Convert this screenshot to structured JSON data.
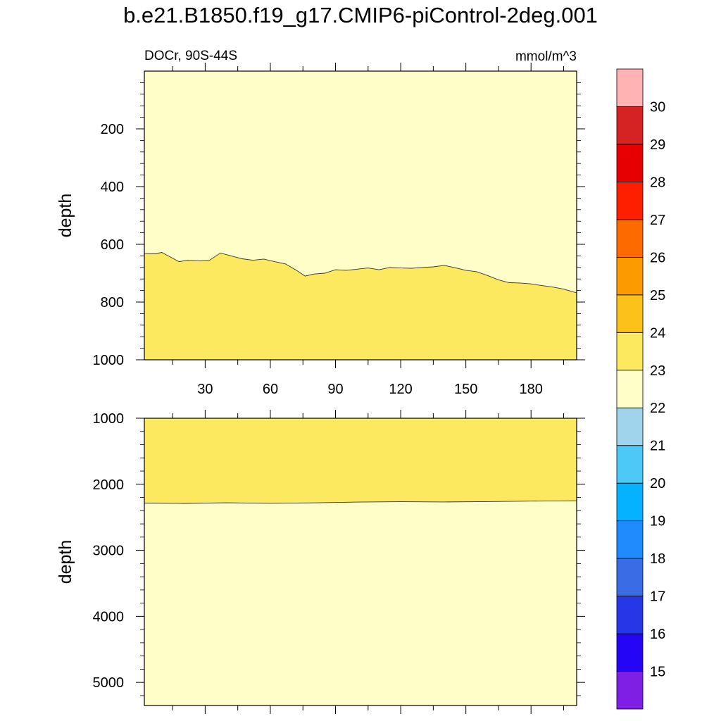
{
  "title": "b.e21.B1850.f19_g17.CMIP6-piControl-2deg.001",
  "colors": {
    "fill_lower_band": "#fde960",
    "fill_upper_band": "#fefec8",
    "contour_line": "#333333",
    "frame": "#000000"
  },
  "chart_data": [
    {
      "type": "area",
      "panel": "upper",
      "subtitle_left": "DOCr, 90S-44S",
      "subtitle_right": "mmol/m^3",
      "xlabel": "",
      "ylabel": "depth",
      "xlim": [
        2,
        201
      ],
      "ylim": [
        0,
        1000
      ],
      "y_inverted": true,
      "x_ticks": [
        30,
        60,
        90,
        120,
        150,
        180
      ],
      "y_ticks": [
        200,
        400,
        600,
        800,
        1000
      ],
      "regions": [
        {
          "range": "22-23",
          "position": "above contour"
        },
        {
          "range": "23-24",
          "position": "below contour"
        }
      ],
      "contour": {
        "level": 23,
        "x": [
          2,
          7,
          10,
          13,
          18,
          22,
          27,
          32,
          37,
          42,
          47,
          52,
          57,
          62,
          67,
          72,
          76,
          80,
          85,
          90,
          95,
          100,
          105,
          110,
          115,
          120,
          125,
          130,
          135,
          140,
          145,
          150,
          155,
          160,
          165,
          170,
          175,
          180,
          185,
          190,
          195,
          201
        ],
        "y": [
          632,
          633,
          628,
          640,
          660,
          655,
          657,
          655,
          630,
          640,
          650,
          655,
          651,
          660,
          668,
          690,
          710,
          703,
          700,
          688,
          690,
          686,
          682,
          688,
          680,
          682,
          683,
          680,
          678,
          673,
          681,
          690,
          695,
          708,
          723,
          733,
          734,
          737,
          743,
          748,
          755,
          768
        ]
      }
    },
    {
      "type": "area",
      "panel": "lower",
      "xlabel": "",
      "ylabel": "depth",
      "xlim": [
        2,
        201
      ],
      "ylim": [
        1000,
        5350
      ],
      "y_inverted": true,
      "y_ticks": [
        1000,
        2000,
        3000,
        4000,
        5000
      ],
      "regions": [
        {
          "range": "23-24",
          "position": "above contour"
        },
        {
          "range": "22-23",
          "position": "below contour"
        }
      ],
      "contour": {
        "level": 23,
        "x": [
          2,
          20,
          40,
          60,
          80,
          100,
          120,
          140,
          160,
          180,
          201
        ],
        "y": [
          2285,
          2290,
          2280,
          2288,
          2282,
          2270,
          2265,
          2268,
          2262,
          2255,
          2250
        ]
      }
    },
    {
      "type": "colorbar",
      "orientation": "vertical",
      "levels": [
        15,
        16,
        17,
        18,
        19,
        20,
        21,
        22,
        23,
        24,
        25,
        26,
        27,
        28,
        29,
        30
      ],
      "colors": [
        "#7f1fe6",
        "#2505f5",
        "#2637e8",
        "#3a6ce6",
        "#1f8bff",
        "#05b2ff",
        "#4dc9f8",
        "#a0d4ed",
        "#fefec8",
        "#fde960",
        "#fcc21a",
        "#fc9b00",
        "#fc6a00",
        "#fe1f00",
        "#e60000",
        "#d52222",
        "#ffb3b3"
      ]
    }
  ]
}
